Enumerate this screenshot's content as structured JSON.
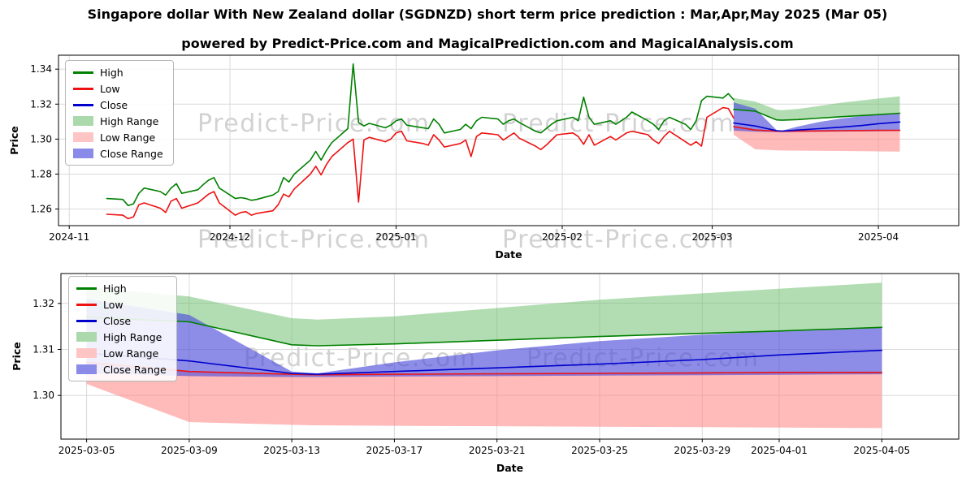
{
  "page": {
    "title": "Singapore dollar With New Zealand dollar (SGDNZD) short term price prediction : Mar,Apr,May 2025 (Mar 05)",
    "subtitle": "powered by Predict-Price.com and MagicalPrediction.com and MagicalAnalysis.com",
    "watermark": "Predict-Price.com"
  },
  "legend": {
    "items": [
      {
        "label": "High",
        "type": "line",
        "color": "#008000"
      },
      {
        "label": "Low",
        "type": "line",
        "color": "#ee1111"
      },
      {
        "label": "Close",
        "type": "line",
        "color": "#0000cd"
      },
      {
        "label": "High Range",
        "type": "patch",
        "color": "#abd9ab"
      },
      {
        "label": "Low Range",
        "type": "patch",
        "color": "#ffc4c4"
      },
      {
        "label": "Close Range",
        "type": "patch",
        "color": "#8a8ae9"
      }
    ]
  },
  "chart_data": [
    {
      "name": "full-history-with-prediction",
      "type": "line",
      "xlabel": "Date",
      "ylabel": "Price",
      "legend_position": "upper left",
      "x_ticks": [
        "2024-11",
        "2024-12",
        "2025-01",
        "2025-02",
        "2025-03",
        "2025-04"
      ],
      "x_tick_dates": [
        "2024-11-01",
        "2024-12-01",
        "2025-01-01",
        "2025-02-01",
        "2025-03-01",
        "2025-04-01"
      ],
      "y_ticks": [
        "1.26",
        "1.28",
        "1.30",
        "1.32",
        "1.34"
      ],
      "y_tick_values": [
        1.26,
        1.28,
        1.3,
        1.32,
        1.34
      ],
      "xlim": [
        "2024-10-30",
        "2025-04-16"
      ],
      "ylim": [
        1.2505,
        1.348
      ],
      "grid": true,
      "lines": [
        {
          "name": "High",
          "color": "#008000",
          "x": [
            "2024-11-08",
            "2024-11-11",
            "2024-11-12",
            "2024-11-13",
            "2024-11-14",
            "2024-11-15",
            "2024-11-18",
            "2024-11-19",
            "2024-11-20",
            "2024-11-21",
            "2024-11-22",
            "2024-11-25",
            "2024-11-26",
            "2024-11-27",
            "2024-11-28",
            "2024-11-29",
            "2024-12-02",
            "2024-12-03",
            "2024-12-04",
            "2024-12-05",
            "2024-12-06",
            "2024-12-09",
            "2024-12-10",
            "2024-12-11",
            "2024-12-12",
            "2024-12-13",
            "2024-12-16",
            "2024-12-17",
            "2024-12-18",
            "2024-12-19",
            "2024-12-20",
            "2024-12-23",
            "2024-12-24",
            "2024-12-25",
            "2024-12-26",
            "2024-12-27",
            "2024-12-30",
            "2024-12-31",
            "2025-01-01",
            "2025-01-02",
            "2025-01-03",
            "2025-01-06",
            "2025-01-07",
            "2025-01-08",
            "2025-01-09",
            "2025-01-10",
            "2025-01-13",
            "2025-01-14",
            "2025-01-15",
            "2025-01-16",
            "2025-01-17",
            "2025-01-20",
            "2025-01-21",
            "2025-01-22",
            "2025-01-23",
            "2025-01-24",
            "2025-01-27",
            "2025-01-28",
            "2025-01-29",
            "2025-01-30",
            "2025-01-31",
            "2025-02-03",
            "2025-02-04",
            "2025-02-05",
            "2025-02-06",
            "2025-02-07",
            "2025-02-10",
            "2025-02-11",
            "2025-02-12",
            "2025-02-13",
            "2025-02-14",
            "2025-02-17",
            "2025-02-18",
            "2025-02-19",
            "2025-02-20",
            "2025-02-21",
            "2025-02-24",
            "2025-02-25",
            "2025-02-26",
            "2025-02-27",
            "2025-02-28",
            "2025-03-03",
            "2025-03-04",
            "2025-03-05"
          ],
          "y": [
            1.266,
            1.2655,
            1.262,
            1.263,
            1.269,
            1.272,
            1.27,
            1.268,
            1.272,
            1.2745,
            1.269,
            1.271,
            1.274,
            1.2765,
            1.278,
            1.272,
            1.266,
            1.2665,
            1.266,
            1.265,
            1.2655,
            1.268,
            1.27,
            1.278,
            1.2755,
            1.28,
            1.288,
            1.293,
            1.288,
            1.2935,
            1.298,
            1.306,
            1.343,
            1.3095,
            1.3075,
            1.309,
            1.3065,
            1.308,
            1.3105,
            1.3115,
            1.308,
            1.3065,
            1.306,
            1.3115,
            1.3085,
            1.3035,
            1.3055,
            1.3085,
            1.306,
            1.3105,
            1.3125,
            1.3115,
            1.3085,
            1.3105,
            1.3115,
            1.3095,
            1.3045,
            1.3035,
            1.306,
            1.3085,
            1.3105,
            1.3125,
            1.3105,
            1.324,
            1.3125,
            1.3085,
            1.3105,
            1.3085,
            1.3105,
            1.3125,
            1.3155,
            1.3105,
            1.3085,
            1.3055,
            1.3105,
            1.3125,
            1.3085,
            1.3055,
            1.3105,
            1.322,
            1.3245,
            1.3235,
            1.326,
            1.3225
          ]
        },
        {
          "name": "Low",
          "color": "#ee1111",
          "x": [
            "2024-11-08",
            "2024-11-11",
            "2024-11-12",
            "2024-11-13",
            "2024-11-14",
            "2024-11-15",
            "2024-11-18",
            "2024-11-19",
            "2024-11-20",
            "2024-11-21",
            "2024-11-22",
            "2024-11-25",
            "2024-11-26",
            "2024-11-27",
            "2024-11-28",
            "2024-11-29",
            "2024-12-02",
            "2024-12-03",
            "2024-12-04",
            "2024-12-05",
            "2024-12-06",
            "2024-12-09",
            "2024-12-10",
            "2024-12-11",
            "2024-12-12",
            "2024-12-13",
            "2024-12-16",
            "2024-12-17",
            "2024-12-18",
            "2024-12-19",
            "2024-12-20",
            "2024-12-23",
            "2024-12-24",
            "2024-12-25",
            "2024-12-26",
            "2024-12-27",
            "2024-12-30",
            "2024-12-31",
            "2025-01-01",
            "2025-01-02",
            "2025-01-03",
            "2025-01-06",
            "2025-01-07",
            "2025-01-08",
            "2025-01-09",
            "2025-01-10",
            "2025-01-13",
            "2025-01-14",
            "2025-01-15",
            "2025-01-16",
            "2025-01-17",
            "2025-01-20",
            "2025-01-21",
            "2025-01-22",
            "2025-01-23",
            "2025-01-24",
            "2025-01-27",
            "2025-01-28",
            "2025-01-29",
            "2025-01-30",
            "2025-01-31",
            "2025-02-03",
            "2025-02-04",
            "2025-02-05",
            "2025-02-06",
            "2025-02-07",
            "2025-02-10",
            "2025-02-11",
            "2025-02-12",
            "2025-02-13",
            "2025-02-14",
            "2025-02-17",
            "2025-02-18",
            "2025-02-19",
            "2025-02-20",
            "2025-02-21",
            "2025-02-24",
            "2025-02-25",
            "2025-02-26",
            "2025-02-27",
            "2025-02-28",
            "2025-03-03",
            "2025-03-04",
            "2025-03-05"
          ],
          "y": [
            1.257,
            1.2565,
            1.2545,
            1.2555,
            1.2625,
            1.2635,
            1.2605,
            1.258,
            1.2645,
            1.266,
            1.2605,
            1.2635,
            1.266,
            1.2685,
            1.27,
            1.2635,
            1.2565,
            1.258,
            1.2585,
            1.2565,
            1.2575,
            1.259,
            1.2625,
            1.2685,
            1.267,
            1.2715,
            1.28,
            1.2845,
            1.2795,
            1.2855,
            1.29,
            1.298,
            1.3,
            1.264,
            1.2995,
            1.301,
            1.2985,
            1.3,
            1.3035,
            1.3045,
            1.299,
            1.2975,
            1.2965,
            1.3025,
            1.2995,
            1.2955,
            1.2975,
            1.2995,
            1.29,
            1.3015,
            1.3035,
            1.3025,
            1.2995,
            1.3015,
            1.3035,
            1.3005,
            1.296,
            1.294,
            1.2965,
            1.2995,
            1.3025,
            1.3035,
            1.3015,
            1.297,
            1.3025,
            1.2965,
            1.3015,
            1.2995,
            1.3015,
            1.3035,
            1.3045,
            1.3025,
            1.2995,
            1.2975,
            1.3015,
            1.3045,
            1.2985,
            1.2965,
            1.2985,
            1.296,
            1.3125,
            1.318,
            1.3175,
            1.312
          ]
        },
        {
          "name": "High forecast",
          "color": "#008000",
          "x": [
            "2025-03-05",
            "2025-03-09",
            "2025-03-13",
            "2025-03-14",
            "2025-03-17",
            "2025-03-21",
            "2025-03-25",
            "2025-03-29",
            "2025-04-01",
            "2025-04-05"
          ],
          "y": [
            1.317,
            1.316,
            1.311,
            1.3108,
            1.3112,
            1.312,
            1.3128,
            1.3135,
            1.314,
            1.3148
          ]
        },
        {
          "name": "Low forecast",
          "color": "#ee1111",
          "x": [
            "2025-03-05",
            "2025-03-09",
            "2025-03-13",
            "2025-03-14",
            "2025-03-17",
            "2025-03-21",
            "2025-03-25",
            "2025-03-29",
            "2025-04-01",
            "2025-04-05"
          ],
          "y": [
            1.3072,
            1.3052,
            1.3046,
            1.3045,
            1.3046,
            1.3047,
            1.3048,
            1.3049,
            1.305,
            1.305
          ]
        },
        {
          "name": "Close forecast",
          "color": "#0000cd",
          "x": [
            "2025-03-05",
            "2025-03-09",
            "2025-03-13",
            "2025-03-14",
            "2025-03-17",
            "2025-03-21",
            "2025-03-25",
            "2025-03-29",
            "2025-04-01",
            "2025-04-05"
          ],
          "y": [
            1.3092,
            1.3075,
            1.3048,
            1.3046,
            1.3052,
            1.306,
            1.3068,
            1.3078,
            1.3088,
            1.3098
          ]
        }
      ],
      "bands": [
        {
          "name": "High Range",
          "color": "rgba(102,187,102,0.5)",
          "x": [
            "2025-03-05",
            "2025-03-09",
            "2025-03-13",
            "2025-03-14",
            "2025-03-17",
            "2025-03-21",
            "2025-03-25",
            "2025-03-29",
            "2025-04-01",
            "2025-04-05"
          ],
          "upper": [
            1.3235,
            1.3215,
            1.3168,
            1.3165,
            1.3172,
            1.319,
            1.3208,
            1.3222,
            1.3232,
            1.3245
          ],
          "lower": [
            1.317,
            1.316,
            1.311,
            1.3108,
            1.3112,
            1.312,
            1.3128,
            1.3135,
            1.314,
            1.3148
          ]
        },
        {
          "name": "Low Range",
          "color": "rgba(255,130,130,0.55)",
          "x": [
            "2025-03-05",
            "2025-03-09",
            "2025-03-13",
            "2025-03-14",
            "2025-03-17",
            "2025-03-21",
            "2025-03-25",
            "2025-03-29",
            "2025-04-01",
            "2025-04-05"
          ],
          "upper": [
            1.3072,
            1.3052,
            1.3046,
            1.3045,
            1.3046,
            1.3047,
            1.3048,
            1.3049,
            1.305,
            1.305
          ],
          "lower": [
            1.3025,
            1.2942,
            1.2936,
            1.2935,
            1.2934,
            1.2933,
            1.2932,
            1.2931,
            1.293,
            1.2929
          ]
        },
        {
          "name": "Close Range",
          "color": "rgba(80,80,220,0.65)",
          "x": [
            "2025-03-05",
            "2025-03-09",
            "2025-03-13",
            "2025-03-14",
            "2025-03-17",
            "2025-03-21",
            "2025-03-25",
            "2025-03-29",
            "2025-04-01",
            "2025-04-05"
          ],
          "upper": [
            1.321,
            1.3175,
            1.3052,
            1.3048,
            1.3072,
            1.3098,
            1.3118,
            1.3132,
            1.314,
            1.3148
          ],
          "lower": [
            1.3048,
            1.3042,
            1.304,
            1.304,
            1.3041,
            1.3042,
            1.3043,
            1.3044,
            1.3045,
            1.3046
          ]
        }
      ]
    },
    {
      "name": "prediction-detail",
      "type": "line",
      "xlabel": "Date",
      "ylabel": "Price",
      "legend_position": "upper left",
      "x_ticks": [
        "2025-03-05",
        "2025-03-09",
        "2025-03-13",
        "2025-03-17",
        "2025-03-21",
        "2025-03-25",
        "2025-03-29",
        "2025-04-01",
        "2025-04-05"
      ],
      "x_tick_dates": [
        "2025-03-05",
        "2025-03-09",
        "2025-03-13",
        "2025-03-17",
        "2025-03-21",
        "2025-03-25",
        "2025-03-29",
        "2025-04-01",
        "2025-04-05"
      ],
      "y_ticks": [
        "1.30",
        "1.31",
        "1.32"
      ],
      "y_tick_values": [
        1.3,
        1.31,
        1.32
      ],
      "xlim": [
        "2025-03-04",
        "2025-04-08"
      ],
      "ylim": [
        1.2905,
        1.3265
      ],
      "grid": true,
      "lines": [
        {
          "name": "High",
          "color": "#008000",
          "x": [
            "2025-03-05",
            "2025-03-09",
            "2025-03-13",
            "2025-03-14",
            "2025-03-17",
            "2025-03-21",
            "2025-03-25",
            "2025-03-29",
            "2025-04-01",
            "2025-04-05"
          ],
          "y": [
            1.317,
            1.316,
            1.311,
            1.3108,
            1.3112,
            1.312,
            1.3128,
            1.3135,
            1.314,
            1.3148
          ]
        },
        {
          "name": "Low",
          "color": "#ee1111",
          "x": [
            "2025-03-05",
            "2025-03-09",
            "2025-03-13",
            "2025-03-14",
            "2025-03-17",
            "2025-03-21",
            "2025-03-25",
            "2025-03-29",
            "2025-04-01",
            "2025-04-05"
          ],
          "y": [
            1.3072,
            1.3052,
            1.3046,
            1.3045,
            1.3046,
            1.3047,
            1.3048,
            1.3049,
            1.305,
            1.305
          ]
        },
        {
          "name": "Close",
          "color": "#0000cd",
          "x": [
            "2025-03-05",
            "2025-03-09",
            "2025-03-13",
            "2025-03-14",
            "2025-03-17",
            "2025-03-21",
            "2025-03-25",
            "2025-03-29",
            "2025-04-01",
            "2025-04-05"
          ],
          "y": [
            1.3092,
            1.3075,
            1.3048,
            1.3046,
            1.3052,
            1.306,
            1.3068,
            1.3078,
            1.3088,
            1.3098
          ]
        }
      ],
      "bands": [
        {
          "name": "High Range",
          "color": "rgba(102,187,102,0.5)",
          "x": [
            "2025-03-05",
            "2025-03-09",
            "2025-03-13",
            "2025-03-14",
            "2025-03-17",
            "2025-03-21",
            "2025-03-25",
            "2025-03-29",
            "2025-04-01",
            "2025-04-05"
          ],
          "upper": [
            1.3235,
            1.3215,
            1.3168,
            1.3165,
            1.3172,
            1.319,
            1.3208,
            1.3222,
            1.3232,
            1.3245
          ],
          "lower": [
            1.317,
            1.316,
            1.311,
            1.3108,
            1.3112,
            1.312,
            1.3128,
            1.3135,
            1.314,
            1.3148
          ]
        },
        {
          "name": "Low Range",
          "color": "rgba(255,130,130,0.55)",
          "x": [
            "2025-03-05",
            "2025-03-09",
            "2025-03-13",
            "2025-03-14",
            "2025-03-17",
            "2025-03-21",
            "2025-03-25",
            "2025-03-29",
            "2025-04-01",
            "2025-04-05"
          ],
          "upper": [
            1.3072,
            1.3052,
            1.3046,
            1.3045,
            1.3046,
            1.3047,
            1.3048,
            1.3049,
            1.305,
            1.305
          ],
          "lower": [
            1.3025,
            1.2942,
            1.2936,
            1.2935,
            1.2934,
            1.2933,
            1.2932,
            1.2931,
            1.293,
            1.2929
          ]
        },
        {
          "name": "Close Range",
          "color": "rgba(80,80,220,0.65)",
          "x": [
            "2025-03-05",
            "2025-03-09",
            "2025-03-13",
            "2025-03-14",
            "2025-03-17",
            "2025-03-21",
            "2025-03-25",
            "2025-03-29",
            "2025-04-01",
            "2025-04-05"
          ],
          "upper": [
            1.321,
            1.3175,
            1.3052,
            1.3048,
            1.3072,
            1.3098,
            1.3118,
            1.3132,
            1.314,
            1.3148
          ],
          "lower": [
            1.3048,
            1.3042,
            1.304,
            1.304,
            1.3041,
            1.3042,
            1.3043,
            1.3044,
            1.3045,
            1.3046
          ]
        }
      ]
    }
  ]
}
